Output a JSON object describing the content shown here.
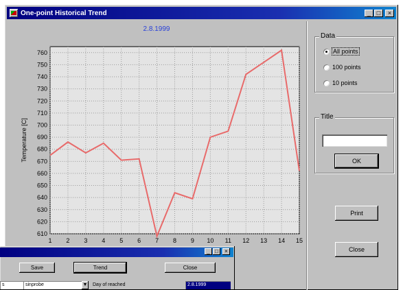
{
  "window": {
    "title": "One-point Historical Trend",
    "controls": {
      "minimize": "_",
      "maximize": "□",
      "close": "×"
    }
  },
  "chart_data": {
    "type": "line",
    "title": "2.8.1999",
    "xlabel": "",
    "ylabel": "Temperature [C]",
    "x": [
      1,
      2,
      3,
      4,
      5,
      6,
      7,
      8,
      9,
      10,
      11,
      12,
      13,
      14,
      15
    ],
    "series": [
      {
        "values": [
          675,
          686,
          677,
          685,
          671,
          672,
          608,
          644,
          639,
          690,
          695,
          742,
          752,
          762,
          662
        ],
        "color": "#e86a6a"
      }
    ],
    "xlim": [
      1,
      15
    ],
    "ylim": [
      610,
      765
    ],
    "yticks": [
      610,
      620,
      630,
      640,
      650,
      660,
      670,
      680,
      690,
      700,
      710,
      720,
      730,
      740,
      750,
      760
    ],
    "grid": true,
    "line_color": "#e86a6a"
  },
  "data_group": {
    "label": "Data",
    "options": [
      {
        "label": "All points",
        "selected": true
      },
      {
        "label": "100 points",
        "selected": false
      },
      {
        "label": "10 points",
        "selected": false
      }
    ]
  },
  "title_group": {
    "label": "Title",
    "value": ""
  },
  "buttons": {
    "ok": "OK",
    "print": "Print",
    "close": "Close"
  },
  "second_window": {
    "buttons": {
      "save": "Save",
      "trend": "Trend",
      "close": "Close"
    },
    "fields": {
      "left_value": "s",
      "combo_value": "sinprobe",
      "date_label": "Day of reached",
      "date_value": "2.8.1999"
    }
  }
}
